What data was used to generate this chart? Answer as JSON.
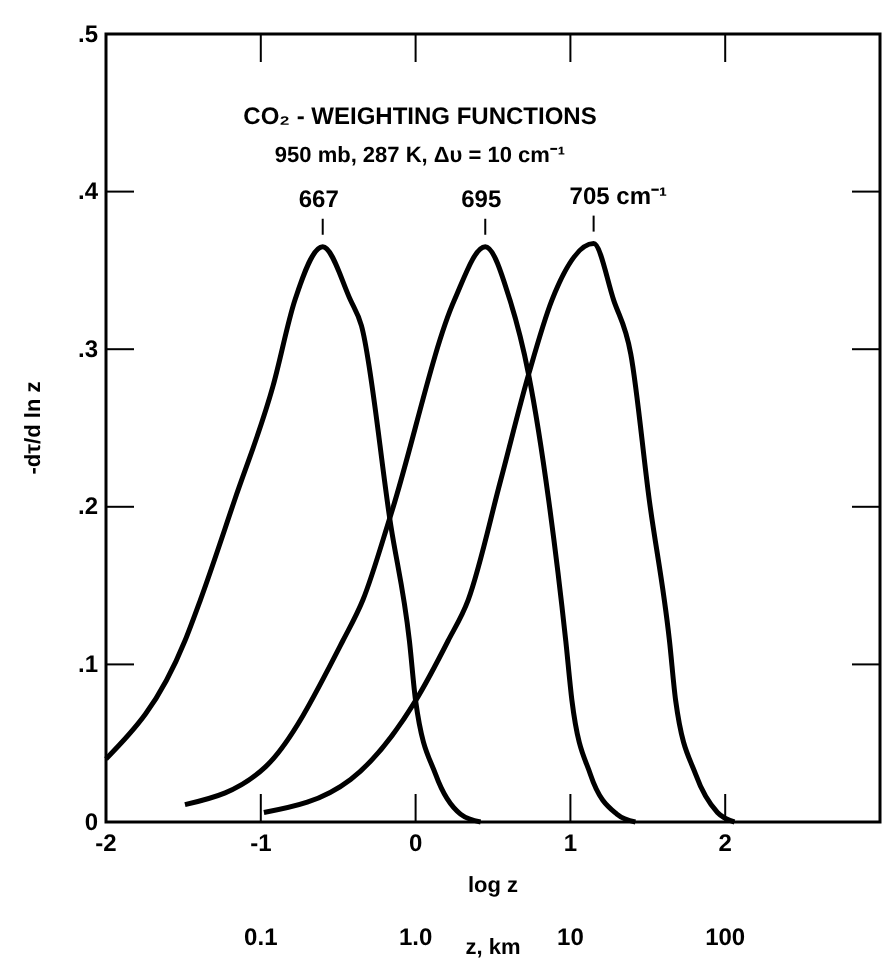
{
  "chart_data": {
    "type": "line",
    "title": "CO₂ - WEIGHTING FUNCTIONS",
    "subtitle": "950 mb, 287 K, Δυ = 10 cm⁻¹",
    "xlabel": "log z",
    "ylabel": "-dτ/d ln z",
    "x2label": "z, km",
    "xlim": [
      -2,
      3
    ],
    "xticks": [
      -2,
      -1,
      0,
      1,
      2
    ],
    "ylim": [
      0,
      0.5
    ],
    "yticks": [
      0,
      {
        "value": 0.1,
        "label": ".1"
      },
      {
        "value": 0.2,
        "label": ".2"
      },
      {
        "value": 0.3,
        "label": ".3"
      },
      {
        "value": 0.4,
        "label": ".4"
      },
      {
        "value": 0.5,
        "label": ".5"
      }
    ],
    "x2lim": [
      0.01,
      1000
    ],
    "x2ticks": [
      {
        "value": 0.1,
        "label": "0.1"
      },
      {
        "value": 1,
        "label": "1.0"
      },
      10,
      100
    ],
    "log": "x2",
    "grid": false,
    "marker": "none",
    "line_style": "solid",
    "series": [
      {
        "color": "#000000",
        "x": [
          -2,
          -1.49,
          -1.39,
          -1.17,
          -0.92,
          -0.78,
          -0.6,
          -0.42,
          -0.35,
          -0.16,
          -0.04,
          0,
          0.13,
          0.29,
          0.42
        ],
        "values": [
          0.04,
          0.115,
          0.141,
          0.204,
          0.277,
          0.331,
          0.365,
          0.331,
          0.315,
          0.188,
          0.115,
          0.077,
          0.03,
          0.005,
          0
        ]
      },
      {
        "color": "#000000",
        "x": [
          -1.49,
          -0.97,
          -0.47,
          -0.34,
          -0.16,
          0.25,
          0.45,
          0.61,
          0.73,
          0.86,
          0.97,
          1.01,
          1.13,
          1.3,
          1.42
        ],
        "values": [
          0.011,
          0.035,
          0.115,
          0.141,
          0.195,
          0.331,
          0.365,
          0.331,
          0.284,
          0.204,
          0.115,
          0.077,
          0.03,
          0.005,
          0
        ]
      },
      {
        "color": "#000000",
        "x": [
          -0.98,
          -0.42,
          0,
          0.21,
          0.34,
          0.55,
          0.73,
          0.88,
          1.15,
          1.28,
          1.39,
          1.51,
          1.64,
          1.68,
          1.81,
          1.95,
          2.06
        ],
        "values": [
          0.006,
          0.027,
          0.077,
          0.115,
          0.141,
          0.217,
          0.284,
          0.331,
          0.367,
          0.331,
          0.297,
          0.204,
          0.115,
          0.077,
          0.03,
          0.006,
          0
        ]
      }
    ],
    "annotations": [
      {
        "text": "667",
        "x": -0.6,
        "y": 0.365
      },
      {
        "text": "695",
        "x": 0.45,
        "y": 0.365
      },
      {
        "text": "705 cm⁻¹",
        "x": 1.15,
        "y": 0.367
      }
    ]
  }
}
